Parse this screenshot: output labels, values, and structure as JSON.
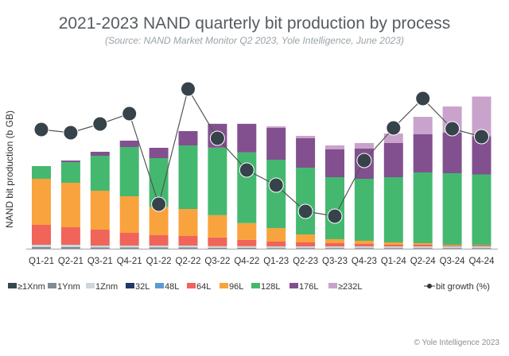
{
  "title": "2021-2023 NAND quarterly bit production by process",
  "subtitle": "(Source: NAND Market Monitor Q2 2023, Yole Intelligence, June 2023)",
  "copyright": "© Yole Intelligence 2023",
  "chart_data": {
    "type": "bar",
    "stacked": true,
    "title": "2021-2023 NAND quarterly bit production by process",
    "ylabel": "NAND bit production (b GB)",
    "xlabel": "",
    "y_ticks_shown": false,
    "grid": false,
    "legend_position": "bottom",
    "categories": [
      "Q1-21",
      "Q2-21",
      "Q3-21",
      "Q4-21",
      "Q1-22",
      "Q2-22",
      "Q3-22",
      "Q4-22",
      "Q1-23",
      "Q2-23",
      "Q3-23",
      "Q4-23",
      "Q1-24",
      "Q2-24",
      "Q3-24",
      "Q4-24"
    ],
    "series": [
      {
        "name": "≥1Xnm",
        "color": "#37474f",
        "values": [
          0.5,
          0.5,
          0.5,
          0.5,
          0.5,
          0.5,
          0.5,
          0.5,
          0.3,
          0.3,
          0.3,
          0.3,
          0.3,
          0.3,
          0.3,
          0.3
        ]
      },
      {
        "name": "1Ynm",
        "color": "#7f8c95",
        "values": [
          1.5,
          1.5,
          1,
          1,
          1,
          1,
          0.7,
          0.7,
          0.7,
          0.7,
          0.7,
          0.7,
          0.7,
          0.7,
          0.7,
          0.7
        ]
      },
      {
        "name": "1Znm",
        "color": "#cfd6da",
        "values": [
          3,
          3,
          2.5,
          2.5,
          2.5,
          2.5,
          2,
          2,
          2,
          2,
          2,
          2,
          2,
          2,
          2,
          2
        ]
      },
      {
        "name": "32L",
        "color": "#1f3a68",
        "values": [
          0,
          0,
          0,
          0,
          0,
          0,
          0,
          0,
          0,
          0,
          0,
          0,
          0,
          0,
          0,
          0
        ]
      },
      {
        "name": "48L",
        "color": "#5b9bd5",
        "values": [
          0,
          0,
          0,
          0,
          0,
          0,
          0,
          0,
          0,
          0,
          0,
          0,
          0,
          0,
          0,
          0
        ]
      },
      {
        "name": "64L",
        "color": "#f0645a",
        "values": [
          25,
          22,
          20,
          16,
          13,
          12,
          11,
          8,
          6,
          5,
          4,
          3,
          2,
          2,
          1,
          1
        ]
      },
      {
        "name": "96L",
        "color": "#f9a33e",
        "values": [
          58,
          56,
          49,
          46,
          36,
          34,
          28,
          21,
          17,
          10,
          5,
          4,
          3,
          2,
          1,
          0.5
        ]
      },
      {
        "name": "128L",
        "color": "#45b870",
        "values": [
          16,
          26,
          44,
          62,
          61,
          80,
          85,
          89,
          86,
          84,
          78,
          78,
          82,
          89,
          90,
          89
        ]
      },
      {
        "name": "176L",
        "color": "#82508f",
        "values": [
          0,
          2,
          5,
          8,
          13,
          18,
          30,
          36,
          40,
          37,
          35,
          38,
          43,
          48,
          51,
          48
        ]
      },
      {
        "name": "≥232L",
        "color": "#c9a3cc",
        "values": [
          0,
          0,
          0,
          0,
          0,
          0,
          0,
          0,
          2,
          3,
          5,
          7,
          12,
          22,
          33,
          50
        ]
      }
    ],
    "line_series": {
      "name": "bit growth (%)",
      "color": "#37434a",
      "values": [
        150,
        146,
        157,
        170,
        56,
        201,
        139,
        99,
        80,
        47,
        41,
        111,
        152,
        189,
        151,
        141
      ]
    }
  }
}
